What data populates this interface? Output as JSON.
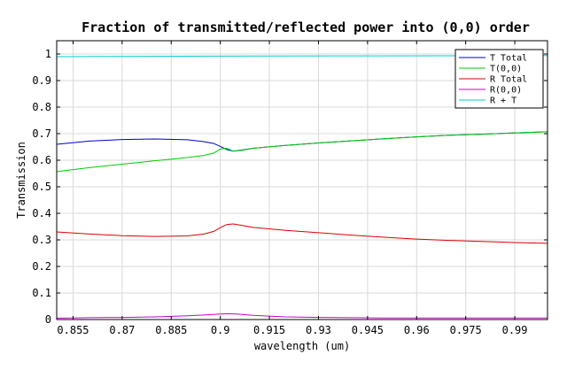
{
  "chart_data": {
    "type": "line",
    "title": "Fraction of transmitted/reflected power into (0,0) order",
    "xlabel": "wavelength (um)",
    "ylabel": "Transmission",
    "xlim": [
      0.85,
      1.0
    ],
    "ylim": [
      0,
      1.05
    ],
    "xticks": [
      0.855,
      0.87,
      0.885,
      0.9,
      0.915,
      0.93,
      0.945,
      0.96,
      0.975,
      0.99
    ],
    "xtick_labels": [
      "0.855",
      "0.87",
      "0.885",
      "0.9",
      "0.915",
      "0.93",
      "0.945",
      "0.96",
      "0.975",
      "0.99"
    ],
    "yticks": [
      0,
      0.1,
      0.2,
      0.3,
      0.4,
      0.5,
      0.6,
      0.7,
      0.8,
      0.9,
      1
    ],
    "ytick_labels": [
      "0",
      "0.1",
      "0.2",
      "0.3",
      "0.4",
      "0.5",
      "0.6",
      "0.7",
      "0.8",
      "0.9",
      "1"
    ],
    "grid": true,
    "legend_position": "top-right",
    "series": [
      {
        "name": "T Total",
        "color": "#0000cc",
        "x": [
          0.85,
          0.86,
          0.87,
          0.88,
          0.89,
          0.895,
          0.898,
          0.9,
          0.902,
          0.904,
          0.906,
          0.91,
          0.92,
          0.93,
          0.94,
          0.95,
          0.96,
          0.97,
          0.98,
          0.99,
          1.0
        ],
        "y": [
          0.66,
          0.672,
          0.678,
          0.68,
          0.677,
          0.67,
          0.663,
          0.652,
          0.64,
          0.634,
          0.637,
          0.645,
          0.656,
          0.665,
          0.673,
          0.681,
          0.688,
          0.694,
          0.698,
          0.703,
          0.707
        ]
      },
      {
        "name": "T(0,0)",
        "color": "#00cc00",
        "x": [
          0.85,
          0.86,
          0.87,
          0.88,
          0.89,
          0.895,
          0.898,
          0.9,
          0.902,
          0.904,
          0.906,
          0.91,
          0.92,
          0.93,
          0.94,
          0.95,
          0.96,
          0.97,
          0.98,
          0.99,
          1.0
        ],
        "y": [
          0.557,
          0.572,
          0.585,
          0.598,
          0.61,
          0.618,
          0.627,
          0.642,
          0.645,
          0.634,
          0.636,
          0.645,
          0.656,
          0.665,
          0.673,
          0.681,
          0.688,
          0.694,
          0.698,
          0.703,
          0.707
        ]
      },
      {
        "name": "R Total",
        "color": "#dd0000",
        "x": [
          0.85,
          0.86,
          0.87,
          0.88,
          0.89,
          0.895,
          0.898,
          0.9,
          0.902,
          0.904,
          0.906,
          0.91,
          0.92,
          0.93,
          0.94,
          0.95,
          0.96,
          0.97,
          0.98,
          0.99,
          1.0
        ],
        "y": [
          0.33,
          0.322,
          0.316,
          0.313,
          0.315,
          0.322,
          0.332,
          0.346,
          0.358,
          0.36,
          0.356,
          0.347,
          0.336,
          0.327,
          0.318,
          0.31,
          0.303,
          0.298,
          0.294,
          0.29,
          0.287
        ]
      },
      {
        "name": "R(0,0)",
        "color": "#cc00cc",
        "x": [
          0.85,
          0.86,
          0.87,
          0.88,
          0.89,
          0.895,
          0.9,
          0.902,
          0.905,
          0.91,
          0.92,
          0.93,
          0.95,
          0.97,
          0.99,
          1.0
        ],
        "y": [
          0.005,
          0.007,
          0.008,
          0.01,
          0.014,
          0.017,
          0.021,
          0.022,
          0.021,
          0.016,
          0.01,
          0.008,
          0.006,
          0.006,
          0.006,
          0.006
        ]
      },
      {
        "name": "R + T",
        "color": "#00cccc",
        "x": [
          0.85,
          0.9,
          0.95,
          1.0
        ],
        "y": [
          0.99,
          0.992,
          0.993,
          0.994
        ]
      }
    ]
  }
}
